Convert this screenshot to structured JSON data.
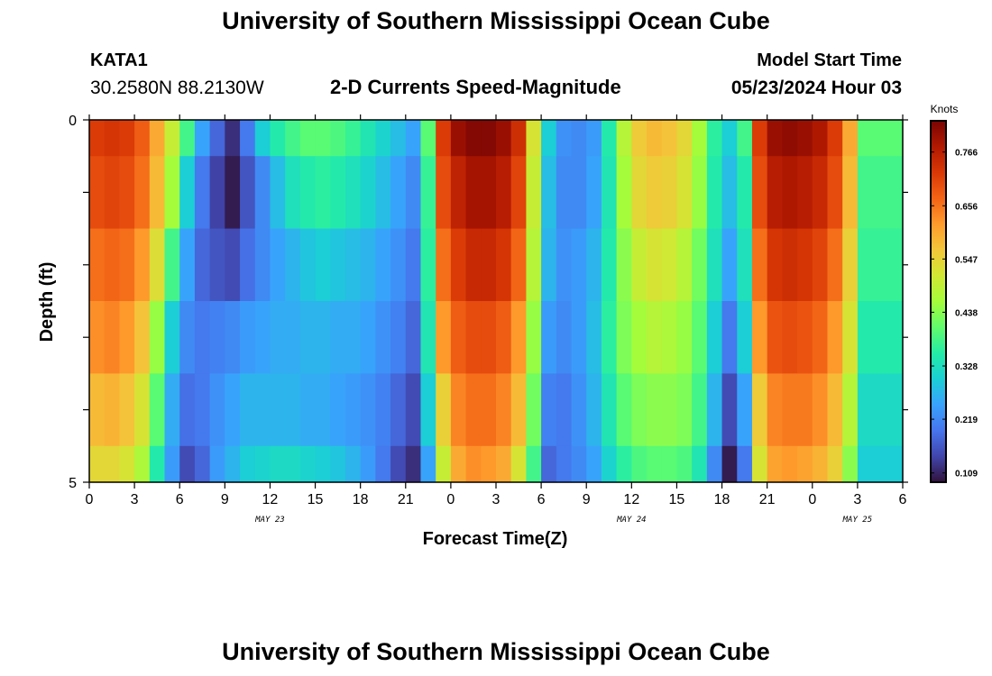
{
  "header": {
    "title": "University of Southern Mississippi Ocean Cube",
    "station": "KATA1",
    "coordinates": "30.2580N  88.2130W",
    "subtitle": "2-D Currents Speed-Magnitude",
    "model_start_label": "Model Start Time",
    "model_start_time": "05/23/2024 Hour 03"
  },
  "footer": {
    "title": "University of Southern Mississippi Ocean Cube"
  },
  "chart_data": {
    "type": "heatmap",
    "xlabel": "Forecast Time(Z)",
    "ylabel": "Depth (ft)",
    "colorbar_label": "Knots",
    "x_tick_labels": [
      "0",
      "3",
      "6",
      "9",
      "12",
      "15",
      "18",
      "21",
      "0",
      "3",
      "6",
      "9",
      "12",
      "15",
      "18",
      "21",
      "0",
      "3",
      "6"
    ],
    "date_labels": [
      {
        "text": "MAY 23",
        "hour": 12
      },
      {
        "text": "MAY 24",
        "hour": 36
      },
      {
        "text": "MAY 25",
        "hour": 51
      }
    ],
    "x_range_hours": [
      0,
      54
    ],
    "y_tick_labels": [
      "0",
      "5"
    ],
    "y_range": [
      0,
      5
    ],
    "depth_bins": [
      "0-0.5",
      "0.5-1.5",
      "1.5-2.5",
      "2.5-3.5",
      "3.5-4.5",
      "4.5-5"
    ],
    "colorbar_ticks": [
      0.109,
      0.219,
      0.328,
      0.438,
      0.547,
      0.656,
      0.766
    ],
    "color_range": [
      0.09,
      0.83
    ],
    "colorscale": [
      "#30123b",
      "#4145ab",
      "#4675ed",
      "#39a2fc",
      "#1bcfd4",
      "#24eca6",
      "#61fc6c",
      "#a4fc3b",
      "#d1e834",
      "#f3c63a",
      "#fe9b2d",
      "#f36315",
      "#d93806",
      "#b11901",
      "#7a0403"
    ],
    "speed_profiles_surface_to_bottom": [
      {
        "hour": 0,
        "values": [
          0.72,
          0.7,
          0.66,
          0.63,
          0.58,
          0.54
        ]
      },
      {
        "hour": 1,
        "values": [
          0.73,
          0.71,
          0.67,
          0.64,
          0.59,
          0.54
        ]
      },
      {
        "hour": 2,
        "values": [
          0.72,
          0.7,
          0.66,
          0.62,
          0.57,
          0.52
        ]
      },
      {
        "hour": 3,
        "values": [
          0.68,
          0.66,
          0.62,
          0.57,
          0.52,
          0.47
        ]
      },
      {
        "hour": 4,
        "values": [
          0.6,
          0.58,
          0.53,
          0.45,
          0.4,
          0.35
        ]
      },
      {
        "hour": 5,
        "values": [
          0.5,
          0.46,
          0.38,
          0.3,
          0.26,
          0.24
        ]
      },
      {
        "hour": 6,
        "values": [
          0.38,
          0.3,
          0.25,
          0.22,
          0.19,
          0.15
        ]
      },
      {
        "hour": 7,
        "values": [
          0.25,
          0.2,
          0.18,
          0.2,
          0.2,
          0.18
        ]
      },
      {
        "hour": 8,
        "values": [
          0.18,
          0.14,
          0.16,
          0.21,
          0.23,
          0.24
        ]
      },
      {
        "hour": 9,
        "values": [
          0.12,
          0.1,
          0.15,
          0.22,
          0.25,
          0.27
        ]
      },
      {
        "hour": 10,
        "values": [
          0.2,
          0.16,
          0.19,
          0.24,
          0.27,
          0.3
        ]
      },
      {
        "hour": 11,
        "values": [
          0.3,
          0.22,
          0.22,
          0.25,
          0.27,
          0.31
        ]
      },
      {
        "hour": 12,
        "values": [
          0.35,
          0.28,
          0.25,
          0.26,
          0.27,
          0.32
        ]
      },
      {
        "hour": 13,
        "values": [
          0.38,
          0.33,
          0.27,
          0.26,
          0.27,
          0.32
        ]
      },
      {
        "hour": 14,
        "values": [
          0.4,
          0.35,
          0.29,
          0.27,
          0.26,
          0.31
        ]
      },
      {
        "hour": 15,
        "values": [
          0.4,
          0.36,
          0.3,
          0.27,
          0.26,
          0.3
        ]
      },
      {
        "hour": 16,
        "values": [
          0.39,
          0.35,
          0.29,
          0.26,
          0.25,
          0.29
        ]
      },
      {
        "hour": 17,
        "values": [
          0.37,
          0.33,
          0.28,
          0.26,
          0.24,
          0.27
        ]
      },
      {
        "hour": 18,
        "values": [
          0.34,
          0.31,
          0.27,
          0.25,
          0.23,
          0.24
        ]
      },
      {
        "hour": 19,
        "values": [
          0.31,
          0.28,
          0.25,
          0.23,
          0.21,
          0.2
        ]
      },
      {
        "hour": 20,
        "values": [
          0.28,
          0.25,
          0.23,
          0.21,
          0.18,
          0.15
        ]
      },
      {
        "hour": 21,
        "values": [
          0.25,
          0.22,
          0.2,
          0.18,
          0.15,
          0.12
        ]
      },
      {
        "hour": 22,
        "values": [
          0.4,
          0.37,
          0.36,
          0.34,
          0.3,
          0.25
        ]
      },
      {
        "hour": 23,
        "values": [
          0.72,
          0.7,
          0.66,
          0.62,
          0.55,
          0.5
        ]
      },
      {
        "hour": 24,
        "values": [
          0.8,
          0.76,
          0.72,
          0.68,
          0.64,
          0.6
        ]
      },
      {
        "hour": 25,
        "values": [
          0.82,
          0.79,
          0.75,
          0.7,
          0.66,
          0.63
        ]
      },
      {
        "hour": 26,
        "values": [
          0.82,
          0.79,
          0.75,
          0.7,
          0.66,
          0.62
        ]
      },
      {
        "hour": 27,
        "values": [
          0.8,
          0.77,
          0.73,
          0.68,
          0.64,
          0.6
        ]
      },
      {
        "hour": 28,
        "values": [
          0.74,
          0.71,
          0.67,
          0.62,
          0.58,
          0.52
        ]
      },
      {
        "hour": 29,
        "values": [
          0.52,
          0.5,
          0.48,
          0.45,
          0.42,
          0.38
        ]
      },
      {
        "hour": 30,
        "values": [
          0.3,
          0.28,
          0.27,
          0.24,
          0.21,
          0.18
        ]
      },
      {
        "hour": 31,
        "values": [
          0.23,
          0.22,
          0.23,
          0.22,
          0.2,
          0.2
        ]
      },
      {
        "hour": 32,
        "values": [
          0.22,
          0.22,
          0.24,
          0.24,
          0.23,
          0.22
        ]
      },
      {
        "hour": 33,
        "values": [
          0.24,
          0.25,
          0.27,
          0.28,
          0.27,
          0.25
        ]
      },
      {
        "hour": 34,
        "values": [
          0.35,
          0.34,
          0.35,
          0.36,
          0.34,
          0.31
        ]
      },
      {
        "hour": 35,
        "values": [
          0.48,
          0.46,
          0.44,
          0.43,
          0.4,
          0.36
        ]
      },
      {
        "hour": 36,
        "values": [
          0.56,
          0.54,
          0.5,
          0.46,
          0.43,
          0.39
        ]
      },
      {
        "hour": 37,
        "values": [
          0.58,
          0.56,
          0.52,
          0.48,
          0.44,
          0.4
        ]
      },
      {
        "hour": 38,
        "values": [
          0.57,
          0.55,
          0.51,
          0.47,
          0.44,
          0.4
        ]
      },
      {
        "hour": 39,
        "values": [
          0.54,
          0.52,
          0.48,
          0.45,
          0.43,
          0.39
        ]
      },
      {
        "hour": 40,
        "values": [
          0.46,
          0.45,
          0.42,
          0.4,
          0.38,
          0.34
        ]
      },
      {
        "hour": 41,
        "values": [
          0.36,
          0.35,
          0.33,
          0.3,
          0.27,
          0.22
        ]
      },
      {
        "hour": 42,
        "values": [
          0.3,
          0.28,
          0.25,
          0.2,
          0.15,
          0.1
        ]
      },
      {
        "hour": 43,
        "values": [
          0.38,
          0.35,
          0.33,
          0.3,
          0.25,
          0.2
        ]
      },
      {
        "hour": 44,
        "values": [
          0.72,
          0.7,
          0.66,
          0.62,
          0.56,
          0.52
        ]
      },
      {
        "hour": 45,
        "values": [
          0.8,
          0.77,
          0.73,
          0.69,
          0.64,
          0.61
        ]
      },
      {
        "hour": 46,
        "values": [
          0.81,
          0.78,
          0.74,
          0.7,
          0.65,
          0.62
        ]
      },
      {
        "hour": 47,
        "values": [
          0.8,
          0.77,
          0.73,
          0.69,
          0.65,
          0.61
        ]
      },
      {
        "hour": 48,
        "values": [
          0.78,
          0.75,
          0.71,
          0.67,
          0.63,
          0.59
        ]
      },
      {
        "hour": 49,
        "values": [
          0.72,
          0.7,
          0.66,
          0.62,
          0.58,
          0.55
        ]
      },
      {
        "hour": 50,
        "values": [
          0.6,
          0.58,
          0.55,
          0.52,
          0.48,
          0.44
        ]
      },
      {
        "hour": 51,
        "values": [
          0.4,
          0.38,
          0.37,
          0.35,
          0.32,
          0.3
        ]
      }
    ]
  }
}
